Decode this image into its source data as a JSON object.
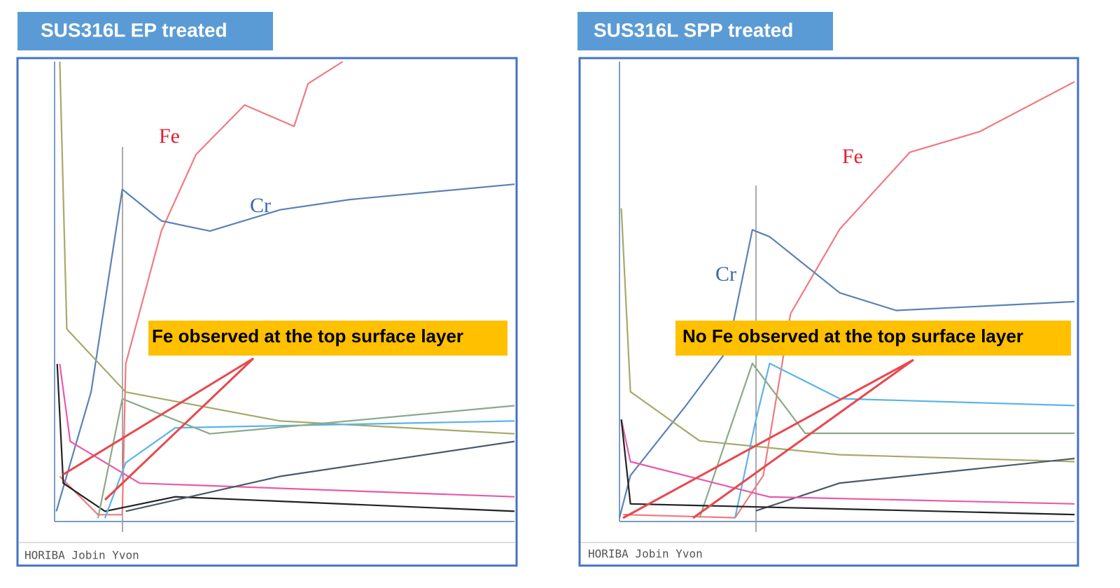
{
  "chart_data": [
    {
      "type": "line",
      "title": "SUS316L EP treated",
      "annotation": "Fe observed at the top surface layer",
      "footer": "HORIBA Jobin Yvon",
      "xlim": [
        0,
        5.3
      ],
      "ylim": [
        0,
        54
      ],
      "series": [
        {
          "name": "Fe",
          "color": "#f07a80",
          "x": [
            0.06,
            0.5,
            0.78,
            0.82,
            1.23,
            1.63,
            2.19,
            2.76,
            2.92,
            3.32
          ],
          "values": [
            5.3,
            0.8,
            0.8,
            18.5,
            34.1,
            43.1,
            48.9,
            46.4,
            51.4,
            54
          ]
        },
        {
          "name": "Cr",
          "color": "#5a82b4",
          "x": [
            0.02,
            0.42,
            0.78,
            1.23,
            1.79,
            2.6,
            3.4,
            5.3
          ],
          "values": [
            1.2,
            15.2,
            39.0,
            35.3,
            34.1,
            36.6,
            37.8,
            39.6
          ]
        },
        {
          "color": "#a8a86a",
          "x": [
            0.06,
            0.14,
            0.82,
            2.6,
            5.3
          ],
          "values": [
            54,
            22.6,
            15.2,
            11.8,
            10.3
          ]
        },
        {
          "color": "#222222",
          "x": [
            0.03,
            0.1,
            0.58,
            1.39,
            5.3
          ],
          "values": [
            18.5,
            4.5,
            1.2,
            2.9,
            1.2
          ]
        },
        {
          "color": "#e85aa8",
          "x": [
            0.06,
            0.18,
            0.98,
            5.3
          ],
          "values": [
            18.5,
            9.4,
            4.5,
            2.9
          ]
        },
        {
          "color": "#5ab4e8",
          "x": [
            0.58,
            0.82,
            1.39,
            5.3
          ],
          "values": [
            0.4,
            6.9,
            11.0,
            11.8
          ]
        },
        {
          "color": "#4a5a6a",
          "x": [
            0.82,
            2.6,
            5.3
          ],
          "values": [
            1.2,
            5.3,
            9.4
          ]
        },
        {
          "color": "#8aaa8a",
          "x": [
            0.5,
            0.78,
            1.79,
            5.3
          ],
          "values": [
            0.4,
            14.4,
            10.3,
            13.6
          ]
        }
      ]
    },
    {
      "type": "line",
      "title": "SUS316L SPP treated",
      "annotation": "No Fe observed at the top surface layer",
      "footer": "HORIBA Jobin Yvon",
      "xlim": [
        0,
        5.0
      ],
      "ylim": [
        0,
        73
      ],
      "series": [
        {
          "name": "Fe",
          "color": "#f07a80",
          "x": [
            0.04,
            1.27,
            1.58,
            1.88,
            2.42,
            3.19,
            3.96,
            5.0
          ],
          "values": [
            1.1,
            0.6,
            7.3,
            33.0,
            46.4,
            58.6,
            61.9,
            69.8
          ]
        },
        {
          "name": "Cr",
          "color": "#5a82b4",
          "x": [
            0,
            0.12,
            0.73,
            1.19,
            1.46,
            1.65,
            2.42,
            3.04,
            5.0
          ],
          "values": [
            0.6,
            7.3,
            18.4,
            27.3,
            46.3,
            45.2,
            36.3,
            33.5,
            34.9
          ]
        },
        {
          "color": "#a8a86a",
          "x": [
            0.02,
            0.12,
            0.88,
            2.42,
            5.0
          ],
          "values": [
            49.7,
            20.6,
            12.8,
            10.6,
            9.5
          ]
        },
        {
          "color": "#5ab4e8",
          "x": [
            1.27,
            1.5,
            1.65,
            2.42,
            5.0
          ],
          "values": [
            0.6,
            16.2,
            25.1,
            19.5,
            18.4
          ]
        },
        {
          "color": "#8aaa8a",
          "x": [
            0.88,
            1.46,
            2.04,
            5.0
          ],
          "values": [
            0.6,
            25.1,
            14.0,
            14.0
          ]
        },
        {
          "color": "#4a5a6a",
          "x": [
            1.5,
            2.42,
            5.0
          ],
          "values": [
            1.7,
            6.1,
            10.0
          ]
        },
        {
          "color": "#e85aa8",
          "x": [
            0.02,
            0.12,
            1.65,
            5.0
          ],
          "values": [
            16.2,
            9.5,
            3.9,
            2.8
          ]
        },
        {
          "color": "#222222",
          "x": [
            0.02,
            0.12,
            5.0
          ],
          "values": [
            16.2,
            2.8,
            1.1
          ]
        }
      ]
    }
  ]
}
